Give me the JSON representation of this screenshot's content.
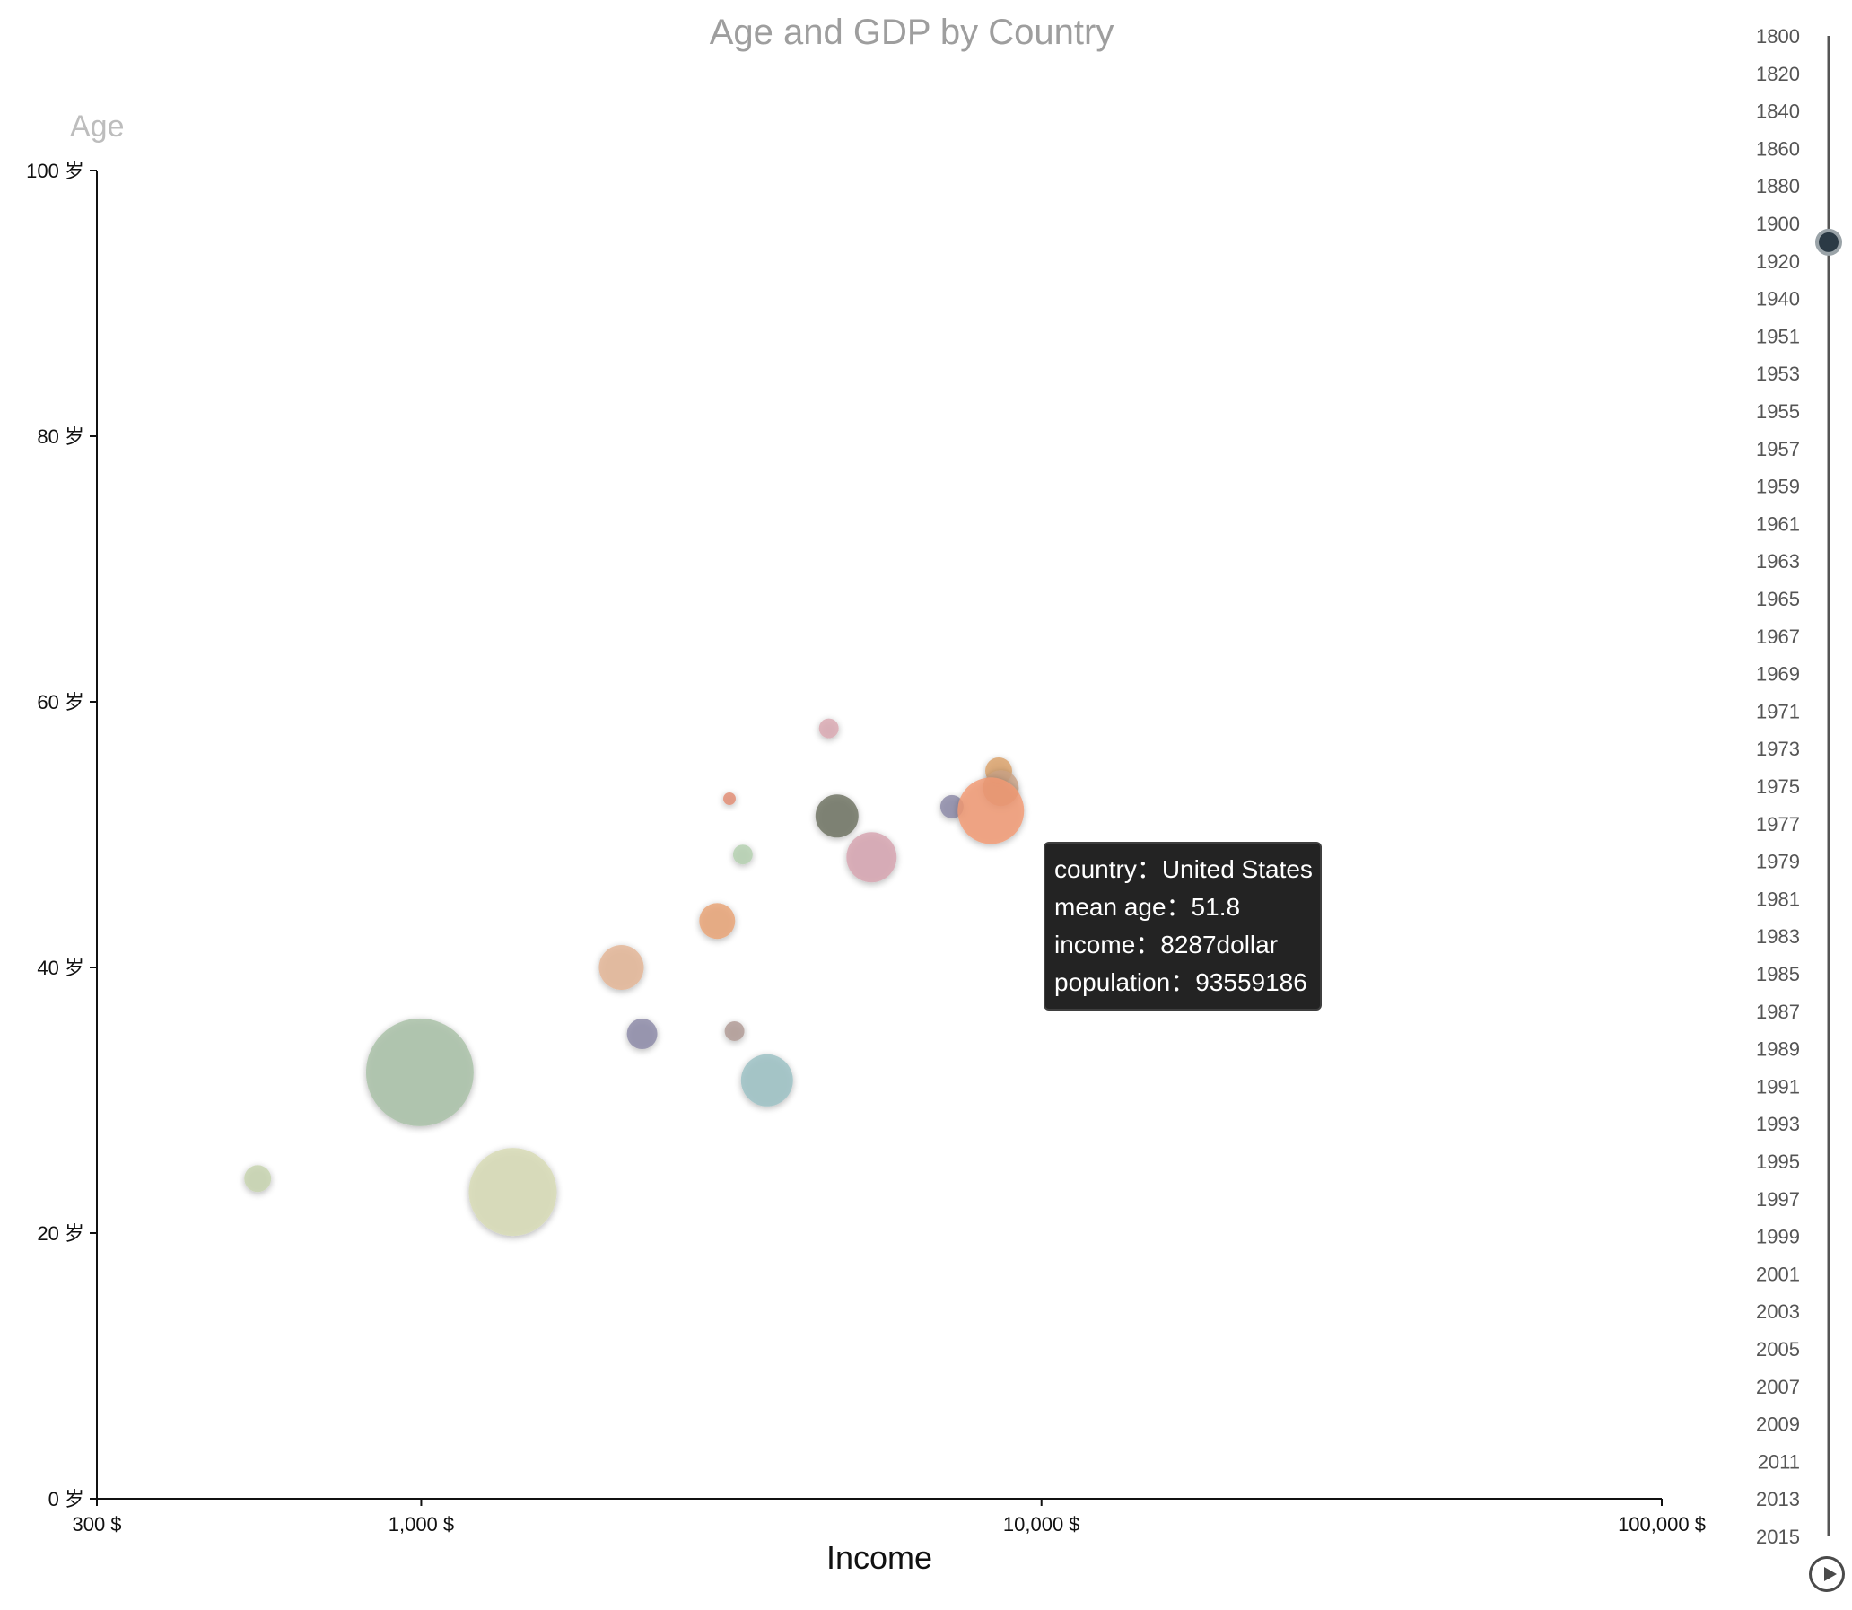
{
  "title": "Age and GDP by Country",
  "chart_data": {
    "type": "scatter",
    "title": "Age and GDP by Country",
    "xlabel": "Income",
    "ylabel": "Age",
    "x_scale": "log",
    "xlim": [
      300,
      100000
    ],
    "ylim": [
      0,
      100
    ],
    "x_ticks": [
      300,
      1000,
      10000,
      100000
    ],
    "x_tick_labels": [
      "300 $",
      "1,000 $",
      "10,000 $",
      "100,000 $"
    ],
    "y_ticks": [
      0,
      20,
      40,
      60,
      80,
      100
    ],
    "y_tick_labels": [
      "0 岁",
      "20 岁",
      "40 岁",
      "60 岁",
      "80 岁",
      "100 岁"
    ],
    "grid": false,
    "legend": "none",
    "points": [
      {
        "income": 995,
        "age": 32.1,
        "size": 60,
        "color": "#a8bfa6"
      },
      {
        "income": 1405,
        "age": 23.1,
        "size": 49,
        "color": "#d7dbb5"
      },
      {
        "income": 545,
        "age": 24.1,
        "size": 15,
        "color": "#c6d3ae"
      },
      {
        "income": 2102,
        "age": 40.0,
        "size": 25,
        "color": "#e3b595"
      },
      {
        "income": 2270,
        "age": 35.0,
        "size": 17,
        "color": "#8b89a6"
      },
      {
        "income": 3000,
        "age": 43.5,
        "size": 20,
        "color": "#e8a275"
      },
      {
        "income": 3300,
        "age": 48.5,
        "size": 11,
        "color": "#b3cfb0"
      },
      {
        "income": 3200,
        "age": 35.2,
        "size": 11,
        "color": "#b09a94"
      },
      {
        "income": 3610,
        "age": 31.5,
        "size": 29,
        "color": "#9bbfc3"
      },
      {
        "income": 3140,
        "age": 52.7,
        "size": 7,
        "color": "#e08c74"
      },
      {
        "income": 4540,
        "age": 58.0,
        "size": 11,
        "color": "#d9a8b1"
      },
      {
        "income": 4680,
        "age": 51.4,
        "size": 24,
        "color": "#6e7160"
      },
      {
        "income": 5320,
        "age": 48.3,
        "size": 28,
        "color": "#d5a4b0"
      },
      {
        "income": 7170,
        "age": 52.1,
        "size": 13,
        "color": "#8b89a6"
      },
      {
        "income": 8530,
        "age": 54.8,
        "size": 15,
        "color": "#dba16a"
      },
      {
        "income": 8600,
        "age": 53.5,
        "size": 20,
        "color": "#c9a185"
      },
      {
        "income": 8287,
        "age": 51.8,
        "size": 37,
        "color": "#f29a74"
      }
    ]
  },
  "timeline": {
    "years": [
      "1800",
      "1820",
      "1840",
      "1860",
      "1880",
      "1900",
      "1920",
      "1940",
      "1951",
      "1953",
      "1955",
      "1957",
      "1959",
      "1961",
      "1963",
      "1965",
      "1967",
      "1969",
      "1971",
      "1973",
      "1975",
      "1977",
      "1979",
      "1981",
      "1983",
      "1985",
      "1987",
      "1989",
      "1991",
      "1993",
      "1995",
      "1997",
      "1999",
      "2001",
      "2003",
      "2005",
      "2007",
      "2009",
      "2011",
      "2013",
      "2015"
    ],
    "current_index": 5.5
  },
  "tooltip": {
    "country_label": "country：",
    "country_value": "United States",
    "age_label": "mean age：",
    "age_value": "51.8",
    "income_label": "income：",
    "income_value": "8287dollar",
    "population_label": "population：",
    "population_value": "93559186"
  },
  "colors": {
    "axis": "#111111",
    "title": "#9e9e9e",
    "ylabel": "#bdbdbd",
    "timeline_line": "#555555",
    "timeline_handle": "#2b3a45",
    "tooltip_bg": "#232323"
  }
}
